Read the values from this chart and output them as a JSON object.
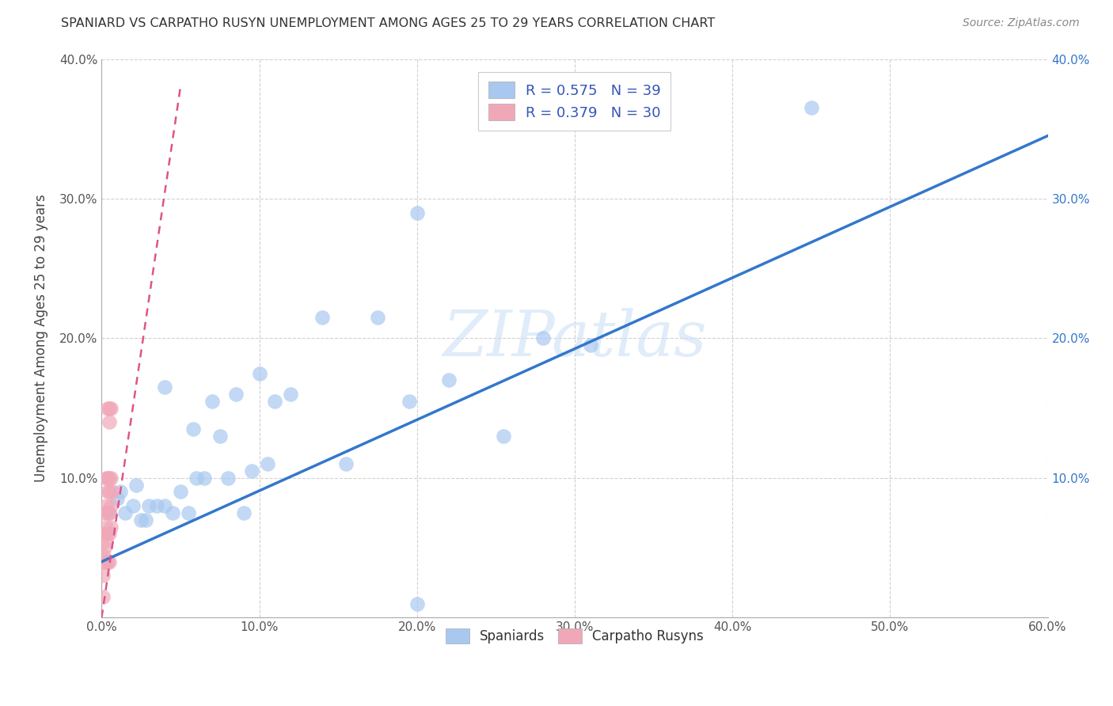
{
  "title": "SPANIARD VS CARPATHO RUSYN UNEMPLOYMENT AMONG AGES 25 TO 29 YEARS CORRELATION CHART",
  "source": "Source: ZipAtlas.com",
  "ylabel": "Unemployment Among Ages 25 to 29 years",
  "xlim": [
    0.0,
    0.6
  ],
  "ylim": [
    0.0,
    0.4
  ],
  "xticks": [
    0.0,
    0.1,
    0.2,
    0.3,
    0.4,
    0.5,
    0.6
  ],
  "yticks": [
    0.0,
    0.1,
    0.2,
    0.3,
    0.4
  ],
  "xtick_labels": [
    "0.0%",
    "10.0%",
    "20.0%",
    "30.0%",
    "40.0%",
    "50.0%",
    "60.0%"
  ],
  "ytick_labels": [
    "",
    "10.0%",
    "20.0%",
    "30.0%",
    "40.0%"
  ],
  "spaniard_R": "0.575",
  "spaniard_N": "39",
  "rusyn_R": "0.379",
  "rusyn_N": "30",
  "spaniard_color": "#a8c8f0",
  "rusyn_color": "#f0a8b8",
  "trendline_spaniard_color": "#3377cc",
  "trendline_rusyn_color": "#dd5588",
  "watermark_text": "ZIPatlas",
  "legend_label_color": "#3355bb",
  "spaniard_x": [
    0.005,
    0.01,
    0.012,
    0.015,
    0.02,
    0.022,
    0.025,
    0.028,
    0.03,
    0.035,
    0.04,
    0.04,
    0.045,
    0.05,
    0.055,
    0.058,
    0.06,
    0.065,
    0.07,
    0.075,
    0.08,
    0.085,
    0.09,
    0.095,
    0.1,
    0.105,
    0.11,
    0.12,
    0.14,
    0.155,
    0.175,
    0.195,
    0.22,
    0.255,
    0.28,
    0.31,
    0.2,
    0.45,
    0.2
  ],
  "spaniard_y": [
    0.075,
    0.085,
    0.09,
    0.075,
    0.08,
    0.095,
    0.07,
    0.07,
    0.08,
    0.08,
    0.08,
    0.165,
    0.075,
    0.09,
    0.075,
    0.135,
    0.1,
    0.1,
    0.155,
    0.13,
    0.1,
    0.16,
    0.075,
    0.105,
    0.175,
    0.11,
    0.155,
    0.16,
    0.215,
    0.11,
    0.215,
    0.155,
    0.17,
    0.13,
    0.2,
    0.195,
    0.29,
    0.365,
    0.01
  ],
  "rusyn_x": [
    0.001,
    0.001,
    0.001,
    0.002,
    0.002,
    0.002,
    0.002,
    0.003,
    0.003,
    0.003,
    0.003,
    0.003,
    0.004,
    0.004,
    0.004,
    0.004,
    0.004,
    0.004,
    0.005,
    0.005,
    0.005,
    0.005,
    0.005,
    0.005,
    0.005,
    0.006,
    0.006,
    0.006,
    0.006,
    0.007
  ],
  "rusyn_y": [
    0.015,
    0.03,
    0.045,
    0.04,
    0.05,
    0.06,
    0.075,
    0.04,
    0.055,
    0.065,
    0.08,
    0.1,
    0.04,
    0.06,
    0.075,
    0.09,
    0.1,
    0.15,
    0.04,
    0.06,
    0.075,
    0.09,
    0.1,
    0.14,
    0.15,
    0.065,
    0.08,
    0.1,
    0.15,
    0.09
  ],
  "trendline_spaniard_x0": 0.0,
  "trendline_spaniard_x1": 0.6,
  "trendline_spaniard_y0": 0.04,
  "trendline_spaniard_y1": 0.345,
  "trendline_rusyn_x0": 0.0,
  "trendline_rusyn_x1": 0.05,
  "trendline_rusyn_y0": 0.0,
  "trendline_rusyn_y1": 0.38
}
